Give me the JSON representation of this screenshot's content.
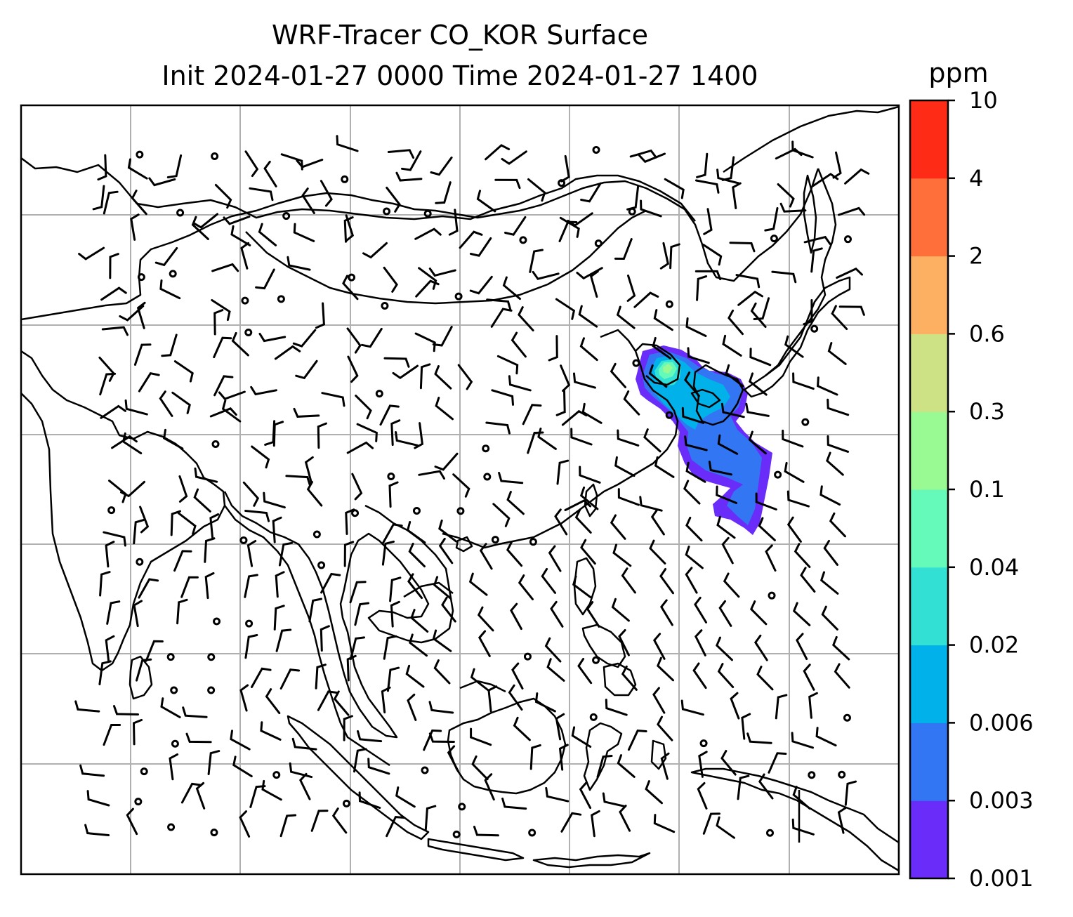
{
  "title_line1": "WRF-Tracer CO_KOR Surface",
  "title_line2": "Init 2024-01-27 0000 Time 2024-01-27 1400",
  "colorbar": {
    "unit": "ppm",
    "levels": [
      "0.001",
      "0.003",
      "0.006",
      "0.02",
      "0.04",
      "0.1",
      "0.3",
      "0.6",
      "2",
      "4",
      "10"
    ],
    "colors": [
      "#6a2cf8",
      "#3376f4",
      "#00b1ea",
      "#33e0d4",
      "#66faba",
      "#99f993",
      "#cde284",
      "#fdb062",
      "#fe6f39",
      "#fe2b16"
    ]
  },
  "map": {
    "gridlines": true,
    "plume_colors": [
      "#6a2cf8",
      "#3376f4",
      "#00b1ea",
      "#33e0d4",
      "#66faba",
      "#99f993"
    ],
    "coastline_color": "#000000",
    "grid_color": "#b0b0b0"
  }
}
